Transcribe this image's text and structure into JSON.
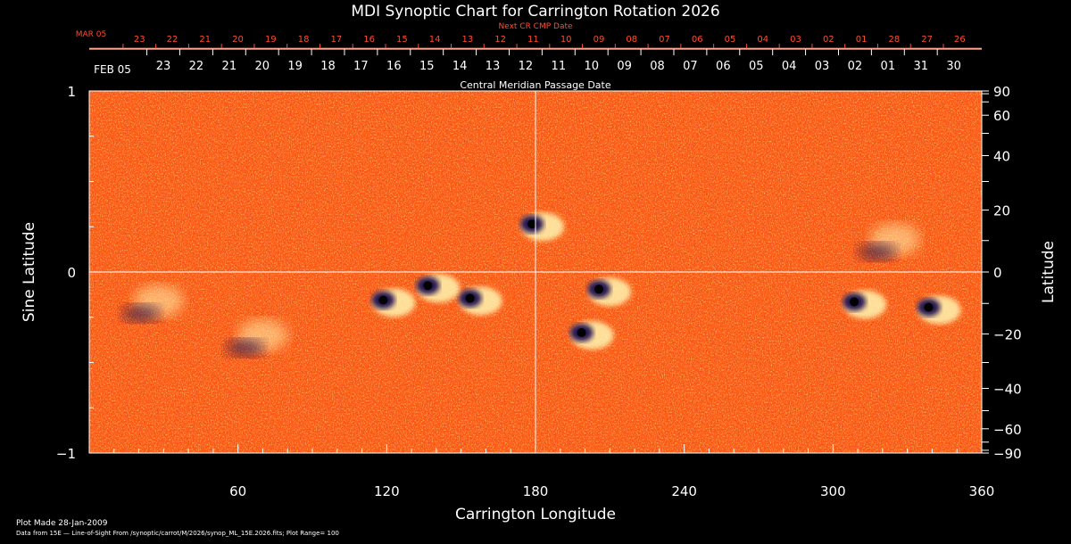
{
  "chart_data": {
    "type": "heatmap",
    "title": "MDI Synoptic Chart for Carrington Rotation 2026",
    "xlabel": "Carrington Longitude",
    "ylabel_left": "Sine Latitude",
    "ylabel_right": "Latitude",
    "top_axis_title": "Central Meridian Passage Date",
    "next_cr_title": "Next CR CMP Date",
    "xlim": [
      0,
      360
    ],
    "ylim": [
      -1,
      1
    ],
    "x_ticks": [
      60,
      120,
      180,
      240,
      300,
      360
    ],
    "y_left_ticks": [
      {
        "value": 1,
        "label": "1"
      },
      {
        "value": 0,
        "label": "0"
      },
      {
        "value": -1,
        "label": "−1"
      }
    ],
    "y_right_ticks": [
      {
        "value": 90,
        "label": "90"
      },
      {
        "value": 60,
        "label": "60"
      },
      {
        "value": 40,
        "label": "40"
      },
      {
        "value": 20,
        "label": "20"
      },
      {
        "value": 0,
        "label": "0"
      },
      {
        "value": -20,
        "label": "−20"
      },
      {
        "value": -40,
        "label": "−40"
      },
      {
        "value": -60,
        "label": "−60"
      },
      {
        "value": -90,
        "label": "−90"
      }
    ],
    "next_cr_month_label": "MAR 05",
    "next_cr_dates": [
      "23",
      "22",
      "21",
      "20",
      "19",
      "18",
      "17",
      "16",
      "15",
      "14",
      "13",
      "12",
      "11",
      "10",
      "09",
      "08",
      "07",
      "06",
      "05",
      "04",
      "03",
      "02",
      "01",
      "28",
      "27",
      "26"
    ],
    "cmp_month_label": "FEB 05",
    "cmp_dates": [
      "23",
      "22",
      "21",
      "20",
      "19",
      "18",
      "17",
      "16",
      "15",
      "14",
      "13",
      "12",
      "11",
      "10",
      "09",
      "08",
      "07",
      "06",
      "05",
      "04",
      "03",
      "02",
      "01",
      "31",
      "30"
    ],
    "crosshair": {
      "longitude": 180,
      "sine_latitude": 0
    },
    "active_regions": [
      {
        "lon": 120,
        "sinlat": -0.16,
        "type": "bipole"
      },
      {
        "lon": 155,
        "sinlat": -0.15,
        "type": "bipole"
      },
      {
        "lon": 138,
        "sinlat": -0.08,
        "type": "bipole"
      },
      {
        "lon": 180,
        "sinlat": 0.26,
        "type": "bipole"
      },
      {
        "lon": 200,
        "sinlat": -0.34,
        "type": "bipole"
      },
      {
        "lon": 207,
        "sinlat": -0.1,
        "type": "bipole"
      },
      {
        "lon": 310,
        "sinlat": -0.17,
        "type": "bipole"
      },
      {
        "lon": 340,
        "sinlat": -0.2,
        "type": "bipole"
      },
      {
        "lon": 325,
        "sinlat": 0.18,
        "type": "plage"
      },
      {
        "lon": 70,
        "sinlat": -0.35,
        "type": "plage"
      },
      {
        "lon": 28,
        "sinlat": -0.16,
        "type": "plage"
      }
    ],
    "colors": {
      "background": "#000000",
      "field": "#ff5a14",
      "positive": "#fff5b0",
      "negative": "#1c1050",
      "title_next": "#ff4d2e",
      "axes": "#ffffff"
    }
  },
  "footer": {
    "plot_made": "Plot Made 28-Jan-2009",
    "data_source": "Data from 15E — Line-of-Sight From /synoptic/carrot/M/2026/synop_ML_15E.2026.fits; Plot Range=  100"
  }
}
